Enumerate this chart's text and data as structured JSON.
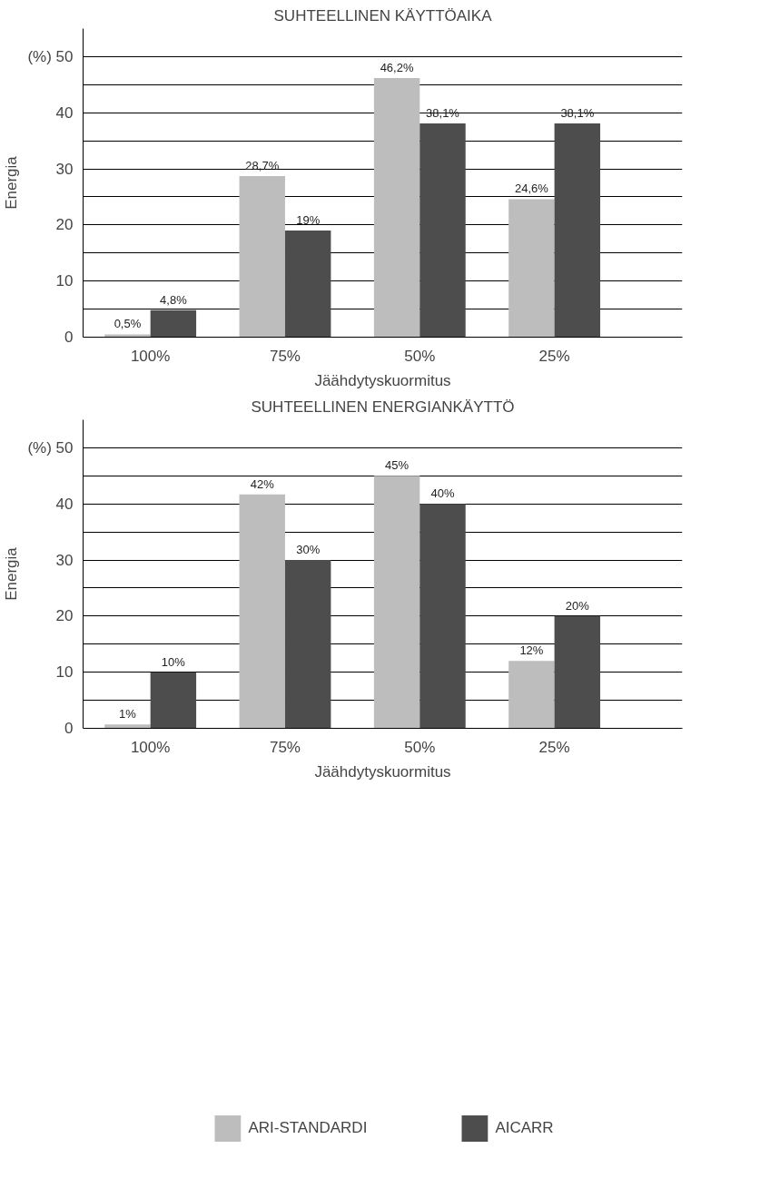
{
  "chart_data": [
    {
      "type": "bar",
      "title": "SUHTEELLINEN KÄYTTÖAIKA",
      "xlabel": "Jäähdytyskuormitus",
      "ylabel": "Energia",
      "categories": [
        "100%",
        "75%",
        "50%",
        "25%"
      ],
      "series": [
        {
          "color": "#bdbdbd",
          "values": [
            0.5,
            28.7,
            46.2,
            24.6
          ],
          "value_labels": [
            "0,5%",
            "28,7%",
            "46,2%",
            "24,6%"
          ]
        },
        {
          "color": "#4d4d4d",
          "values": [
            4.8,
            19,
            38.1,
            38.1
          ],
          "value_labels": [
            "4,8%",
            "19%",
            "38,1%",
            "38,1%"
          ]
        }
      ],
      "ylim": [
        0,
        55
      ],
      "yticks": [
        0,
        {
          "value": 5,
          "label": null
        },
        10,
        {
          "value": 15,
          "label": null
        },
        20,
        {
          "value": 25,
          "label": null
        },
        30,
        {
          "value": 35,
          "label": null
        },
        40,
        {
          "value": 45,
          "label": null
        },
        {
          "value": 50,
          "label": "(%) 50"
        }
      ],
      "grid": "y",
      "legend": false
    },
    {
      "type": "bar",
      "title": "SUHTEELLINEN ENERGIANKÄYTTÖ",
      "xlabel": "Jäähdytyskuormitus",
      "ylabel": "Energia",
      "categories": [
        "100%",
        "75%",
        "50%",
        "25%"
      ],
      "series": [
        {
          "name": "ARI-STANDARDI",
          "color": "#bdbdbd",
          "values": [
            0.7,
            41.7,
            45,
            12
          ],
          "value_labels": [
            "1%",
            "42%",
            "45%",
            "12%"
          ]
        },
        {
          "name": "AICARR",
          "color": "#4d4d4d",
          "values": [
            10,
            30,
            40,
            20
          ],
          "value_labels": [
            "10%",
            "30%",
            "40%",
            "20%"
          ]
        }
      ],
      "ylim": [
        0,
        55
      ],
      "yticks": [
        0,
        {
          "value": 5,
          "label": null
        },
        10,
        {
          "value": 15,
          "label": null
        },
        20,
        {
          "value": 25,
          "label": null
        },
        30,
        {
          "value": 35,
          "label": null
        },
        40,
        {
          "value": 45,
          "label": null
        },
        {
          "value": 50,
          "label": "(%) 50"
        }
      ],
      "grid": "y",
      "legend": "bottom"
    }
  ]
}
